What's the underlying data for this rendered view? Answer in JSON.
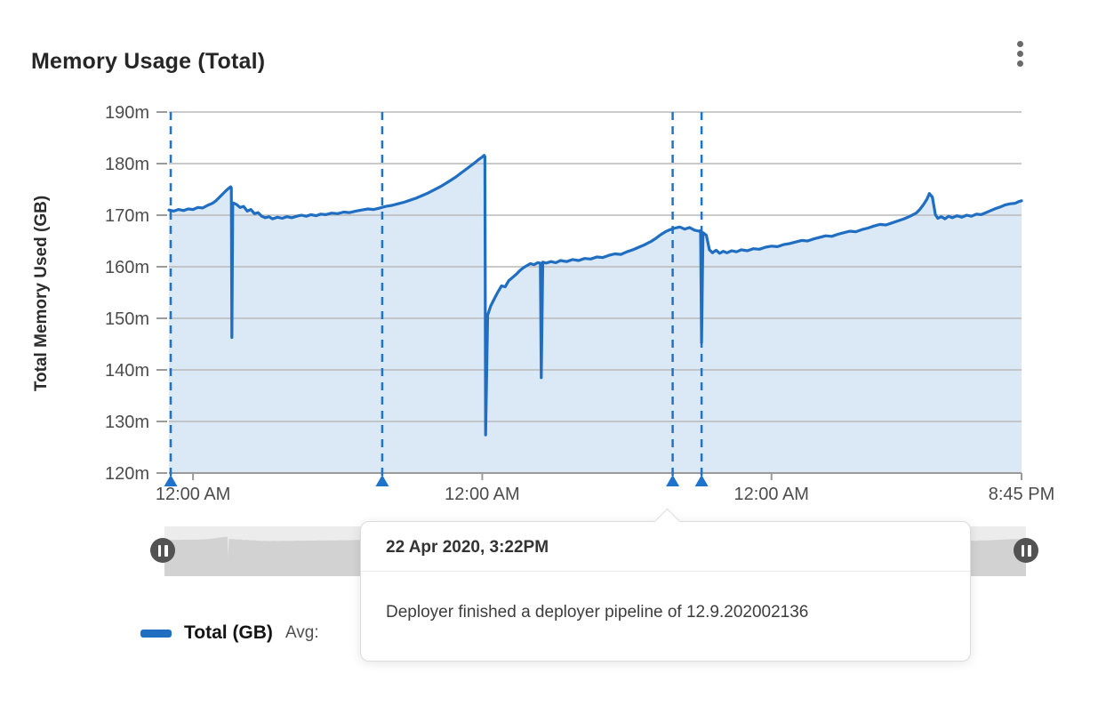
{
  "header": {
    "title": "Memory Usage (Total)",
    "menu_icon": "kebab-vertical"
  },
  "chart_data": {
    "type": "area",
    "title": "Memory Usage (Total)",
    "ylabel": "Total Memory Used (GB)",
    "xlabel": "",
    "ylim": [
      120,
      190
    ],
    "grid": true,
    "legend_position": "bottom-left",
    "y_ticks": [
      {
        "value": 190,
        "label": "190m"
      },
      {
        "value": 180,
        "label": "180m"
      },
      {
        "value": 170,
        "label": "170m"
      },
      {
        "value": 160,
        "label": "160m"
      },
      {
        "value": 150,
        "label": "150m"
      },
      {
        "value": 140,
        "label": "140m"
      },
      {
        "value": 130,
        "label": "130m"
      },
      {
        "value": 120,
        "label": "120m"
      }
    ],
    "x_range_hours": [
      0,
      70.75
    ],
    "x_ticks": [
      {
        "pos": 2.0,
        "label": "12:00 AM"
      },
      {
        "pos": 26.0,
        "label": "12:00 AM"
      },
      {
        "pos": 50.0,
        "label": "12:00 AM"
      },
      {
        "pos": 70.75,
        "label": "8:45 PM"
      }
    ],
    "events": [
      {
        "pos": 0.15,
        "marker": "triangle-up",
        "line_style": "dashed"
      },
      {
        "pos": 17.7,
        "marker": "triangle-up",
        "line_style": "dashed"
      },
      {
        "pos": 41.8,
        "marker": "triangle-up",
        "line_style": "dashed"
      },
      {
        "pos": 44.2,
        "marker": "triangle-up",
        "line_style": "dashed"
      }
    ],
    "series": [
      {
        "name": "Total (GB)",
        "color": "#1f6ec2",
        "points": [
          [
            0,
            171.0
          ],
          [
            0.4,
            170.8
          ],
          [
            0.8,
            171.1
          ],
          [
            1.2,
            170.9
          ],
          [
            1.6,
            171.2
          ],
          [
            2.0,
            171.1
          ],
          [
            2.4,
            171.5
          ],
          [
            2.8,
            171.4
          ],
          [
            3.2,
            171.9
          ],
          [
            3.6,
            172.3
          ],
          [
            3.9,
            172.8
          ],
          [
            4.2,
            173.5
          ],
          [
            4.5,
            174.2
          ],
          [
            4.8,
            174.9
          ],
          [
            5.0,
            175.3
          ],
          [
            5.12,
            175.5
          ],
          [
            5.18,
            175.3
          ],
          [
            5.22,
            146.3
          ],
          [
            5.3,
            172.4
          ],
          [
            5.6,
            172.1
          ],
          [
            5.9,
            171.5
          ],
          [
            6.2,
            171.7
          ],
          [
            6.5,
            170.8
          ],
          [
            6.8,
            171.1
          ],
          [
            7.1,
            170.3
          ],
          [
            7.4,
            170.5
          ],
          [
            7.7,
            169.8
          ],
          [
            8.0,
            169.5
          ],
          [
            8.3,
            169.7
          ],
          [
            8.6,
            169.3
          ],
          [
            9.0,
            169.6
          ],
          [
            9.4,
            169.4
          ],
          [
            9.8,
            169.7
          ],
          [
            10.2,
            169.5
          ],
          [
            10.6,
            169.8
          ],
          [
            11.0,
            170.0
          ],
          [
            11.4,
            169.8
          ],
          [
            11.8,
            170.1
          ],
          [
            12.2,
            169.9
          ],
          [
            12.6,
            170.2
          ],
          [
            13.0,
            170.1
          ],
          [
            13.5,
            170.4
          ],
          [
            14.0,
            170.3
          ],
          [
            14.5,
            170.6
          ],
          [
            15.0,
            170.5
          ],
          [
            15.5,
            170.8
          ],
          [
            16.0,
            171.0
          ],
          [
            16.5,
            171.2
          ],
          [
            17.0,
            171.1
          ],
          [
            17.5,
            171.4
          ],
          [
            18.0,
            171.7
          ],
          [
            18.5,
            171.9
          ],
          [
            19.0,
            172.2
          ],
          [
            19.5,
            172.5
          ],
          [
            20.0,
            172.9
          ],
          [
            20.5,
            173.3
          ],
          [
            21.0,
            173.8
          ],
          [
            21.5,
            174.3
          ],
          [
            22.0,
            174.9
          ],
          [
            22.5,
            175.5
          ],
          [
            23.0,
            176.2
          ],
          [
            23.4,
            176.8
          ],
          [
            23.8,
            177.4
          ],
          [
            24.2,
            178.1
          ],
          [
            24.6,
            178.8
          ],
          [
            25.0,
            179.5
          ],
          [
            25.4,
            180.2
          ],
          [
            25.7,
            180.8
          ],
          [
            26.0,
            181.3
          ],
          [
            26.15,
            181.6
          ],
          [
            26.22,
            181.4
          ],
          [
            26.28,
            127.4
          ],
          [
            26.45,
            150.6
          ],
          [
            26.7,
            152.4
          ],
          [
            27.0,
            153.8
          ],
          [
            27.3,
            155.1
          ],
          [
            27.6,
            156.3
          ],
          [
            27.9,
            156.1
          ],
          [
            28.2,
            157.3
          ],
          [
            28.5,
            157.9
          ],
          [
            28.8,
            158.5
          ],
          [
            29.1,
            159.2
          ],
          [
            29.4,
            159.8
          ],
          [
            29.7,
            160.2
          ],
          [
            30.0,
            160.6
          ],
          [
            30.3,
            160.4
          ],
          [
            30.6,
            160.8
          ],
          [
            30.82,
            160.7
          ],
          [
            30.9,
            138.5
          ],
          [
            31.02,
            160.9
          ],
          [
            31.3,
            160.7
          ],
          [
            31.7,
            161.0
          ],
          [
            32.1,
            160.8
          ],
          [
            32.5,
            161.2
          ],
          [
            33.0,
            161.0
          ],
          [
            33.5,
            161.4
          ],
          [
            34.0,
            161.2
          ],
          [
            34.5,
            161.6
          ],
          [
            35.0,
            161.5
          ],
          [
            35.5,
            161.9
          ],
          [
            36.0,
            161.8
          ],
          [
            36.5,
            162.2
          ],
          [
            37.0,
            162.5
          ],
          [
            37.5,
            162.4
          ],
          [
            38.0,
            162.9
          ],
          [
            38.5,
            163.3
          ],
          [
            39.0,
            163.8
          ],
          [
            39.5,
            164.3
          ],
          [
            40.0,
            164.9
          ],
          [
            40.4,
            165.5
          ],
          [
            40.8,
            166.2
          ],
          [
            41.2,
            166.8
          ],
          [
            41.6,
            167.2
          ],
          [
            42.0,
            167.5
          ],
          [
            42.4,
            167.7
          ],
          [
            42.8,
            167.3
          ],
          [
            43.2,
            167.6
          ],
          [
            43.6,
            167.1
          ],
          [
            44.0,
            166.9
          ],
          [
            44.12,
            167.0
          ],
          [
            44.2,
            145.3
          ],
          [
            44.32,
            166.6
          ],
          [
            44.6,
            166.1
          ],
          [
            44.85,
            163.3
          ],
          [
            45.1,
            162.7
          ],
          [
            45.4,
            163.2
          ],
          [
            45.7,
            162.6
          ],
          [
            46.0,
            163.0
          ],
          [
            46.3,
            162.7
          ],
          [
            46.7,
            163.1
          ],
          [
            47.1,
            162.9
          ],
          [
            47.5,
            163.3
          ],
          [
            48.0,
            163.1
          ],
          [
            48.5,
            163.5
          ],
          [
            49.0,
            163.4
          ],
          [
            49.5,
            163.8
          ],
          [
            50.0,
            164.0
          ],
          [
            50.5,
            163.9
          ],
          [
            51.0,
            164.3
          ],
          [
            51.5,
            164.5
          ],
          [
            52.0,
            164.8
          ],
          [
            52.5,
            165.1
          ],
          [
            53.0,
            165.0
          ],
          [
            53.5,
            165.4
          ],
          [
            54.0,
            165.7
          ],
          [
            54.5,
            166.0
          ],
          [
            55.0,
            165.9
          ],
          [
            55.5,
            166.3
          ],
          [
            56.0,
            166.6
          ],
          [
            56.5,
            166.9
          ],
          [
            57.0,
            166.8
          ],
          [
            57.5,
            167.2
          ],
          [
            58.0,
            167.5
          ],
          [
            58.5,
            167.9
          ],
          [
            59.0,
            168.2
          ],
          [
            59.5,
            168.1
          ],
          [
            60.0,
            168.5
          ],
          [
            60.5,
            168.9
          ],
          [
            61.0,
            169.3
          ],
          [
            61.5,
            169.8
          ],
          [
            62.0,
            170.4
          ],
          [
            62.3,
            171.1
          ],
          [
            62.6,
            172.0
          ],
          [
            62.9,
            173.1
          ],
          [
            63.1,
            174.2
          ],
          [
            63.35,
            173.5
          ],
          [
            63.6,
            170.1
          ],
          [
            63.8,
            169.4
          ],
          [
            64.1,
            169.7
          ],
          [
            64.4,
            169.3
          ],
          [
            64.7,
            169.8
          ],
          [
            65.0,
            169.5
          ],
          [
            65.4,
            169.9
          ],
          [
            65.8,
            169.6
          ],
          [
            66.2,
            170.0
          ],
          [
            66.6,
            169.8
          ],
          [
            67.0,
            170.2
          ],
          [
            67.4,
            170.1
          ],
          [
            67.8,
            170.5
          ],
          [
            68.2,
            170.9
          ],
          [
            68.6,
            171.3
          ],
          [
            69.0,
            171.6
          ],
          [
            69.4,
            172.0
          ],
          [
            69.8,
            172.2
          ],
          [
            70.2,
            172.3
          ],
          [
            70.5,
            172.6
          ],
          [
            70.75,
            172.8
          ]
        ]
      }
    ]
  },
  "colors": {
    "line": "#1f6ec2",
    "area_fill": "rgba(31,110,194,0.16)",
    "event_line": "#1e74cc",
    "grid": "#b9b9b9",
    "axis_line": "#9a9a9a",
    "tick_text": "#4c4c4c",
    "minimap_bg": "#ececec",
    "minimap_fill": "#d2d2d2"
  },
  "tooltip": {
    "timestamp": "22 Apr 2020, 3:22PM",
    "message": "Deployer finished a deployer pipeline of 12.9.202002136"
  },
  "legend": {
    "series_label": "Total (GB)",
    "avg_label": "Avg:",
    "swatch_color": "#1f6ec2"
  }
}
